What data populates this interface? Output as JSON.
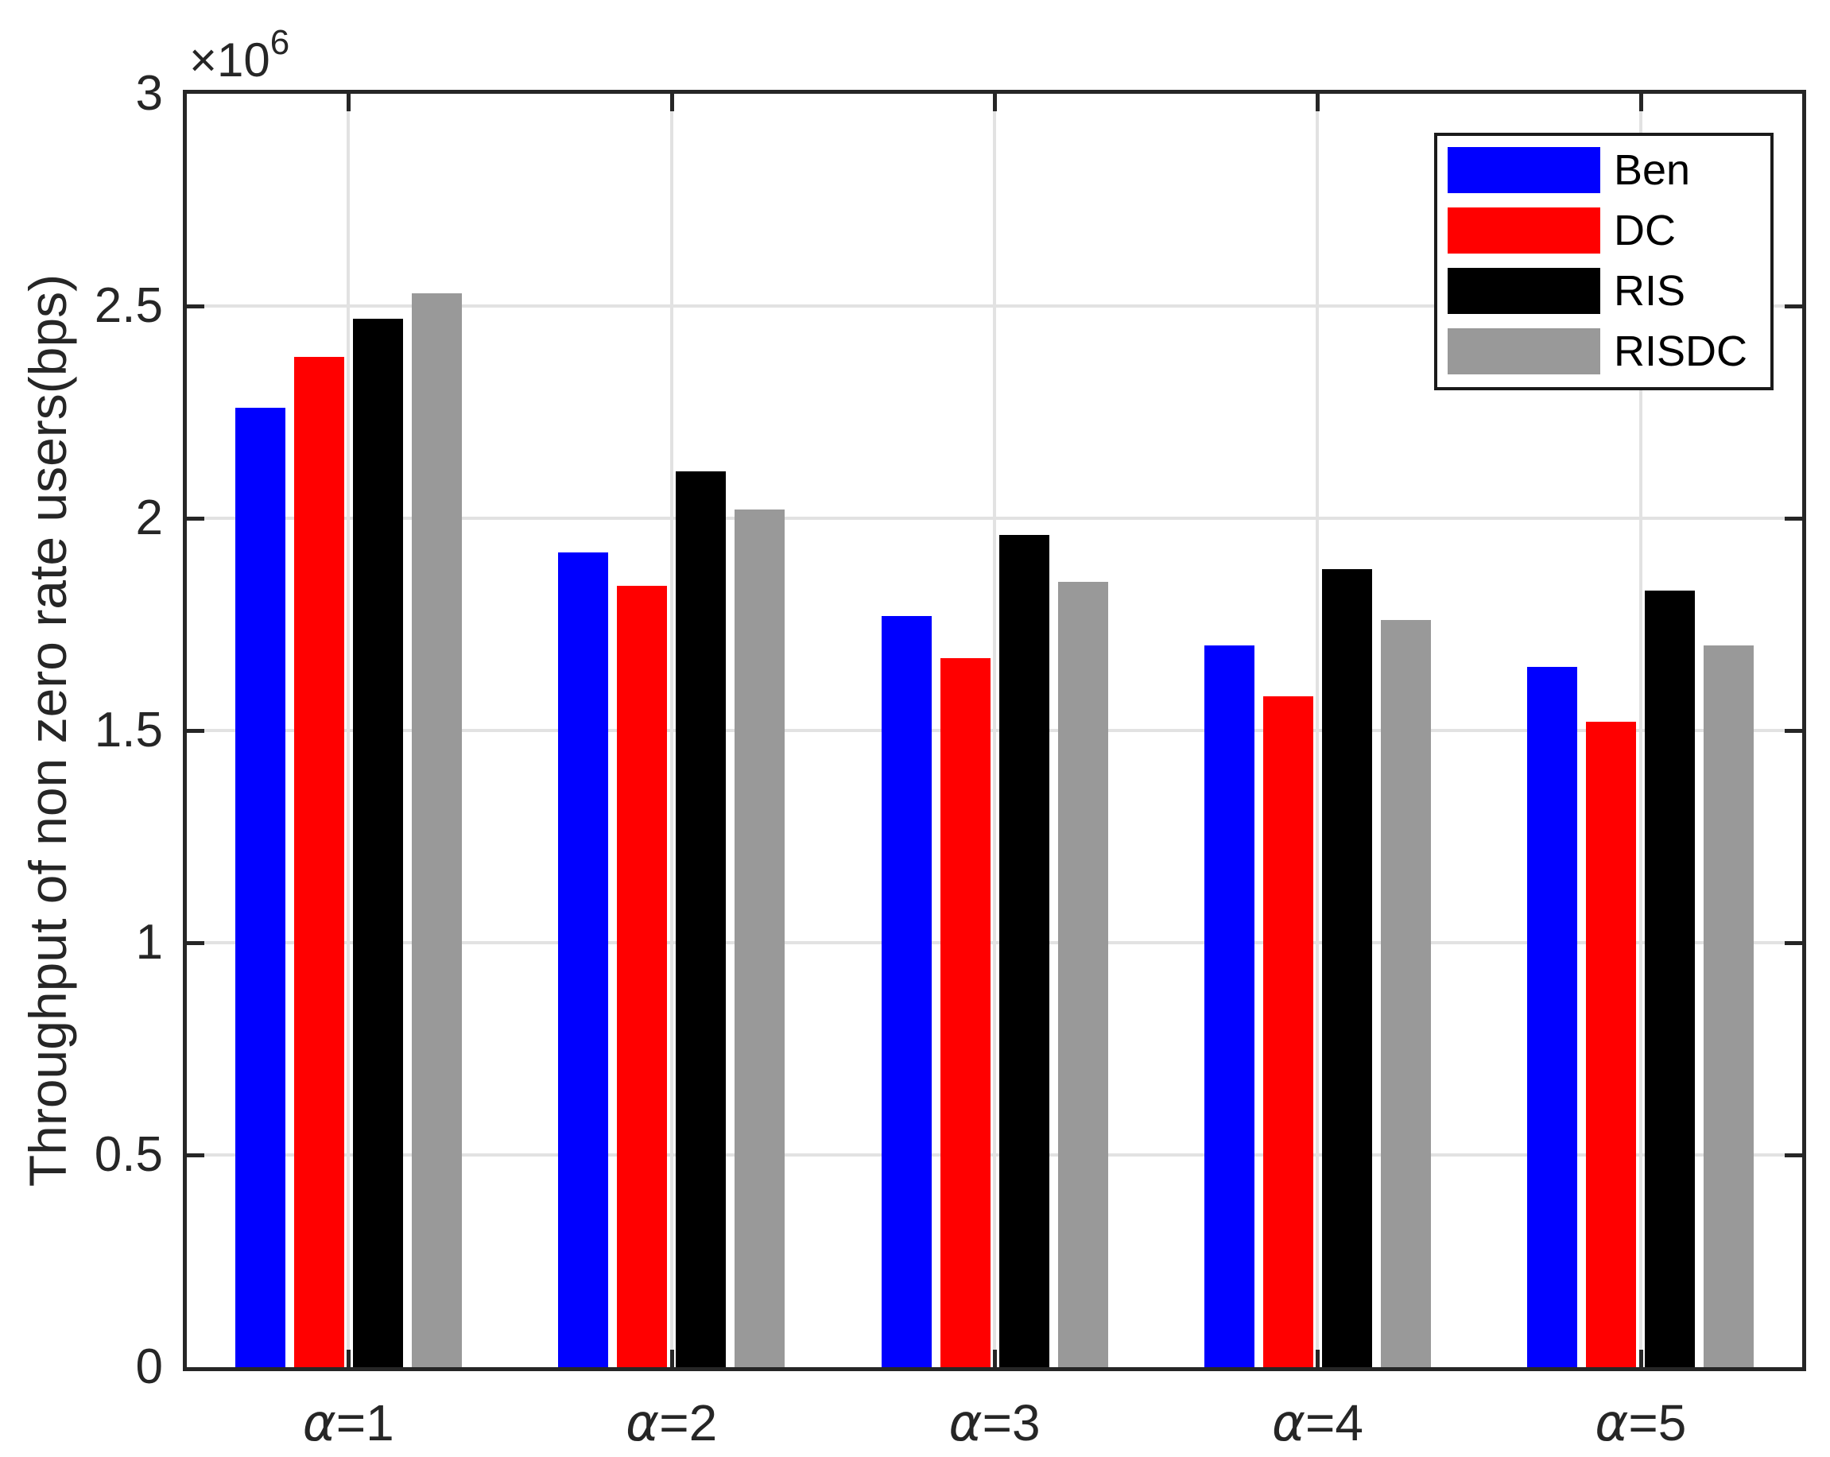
{
  "figure": {
    "y_axis_label": "Throughput of non zero rate users(bps)",
    "axis_scale_label": "×10^6",
    "axis_color": "#262626",
    "grid_color": "#e2e2e2",
    "background": "#ffffff",
    "legend_border_color": "#1a1a1a"
  },
  "chart_data": {
    "type": "bar",
    "title": "",
    "xlabel": "",
    "ylabel": "Throughput of non zero rate users(bps)",
    "value_scale_factor": 1000000,
    "value_scale_text": "×10^6",
    "categories": [
      "α=1",
      "α=2",
      "α=3",
      "α=4",
      "α=5"
    ],
    "series": [
      {
        "name": "Ben",
        "color": "#0000ff",
        "values": [
          2.26,
          1.92,
          1.77,
          1.7,
          1.65
        ]
      },
      {
        "name": "DC",
        "color": "#ff0000",
        "values": [
          2.38,
          1.84,
          1.67,
          1.58,
          1.52
        ]
      },
      {
        "name": "RIS",
        "color": "#000000",
        "values": [
          2.47,
          2.11,
          1.96,
          1.88,
          1.83
        ]
      },
      {
        "name": "RISDC",
        "color": "#999999",
        "values": [
          2.53,
          2.02,
          1.85,
          1.76,
          1.7
        ]
      }
    ],
    "ylim": [
      0,
      3
    ],
    "yticks": [
      0,
      0.5,
      1,
      1.5,
      2,
      2.5,
      3
    ],
    "ytick_labels": [
      "0",
      "0.5",
      "1",
      "1.5",
      "2",
      "2.5",
      "3"
    ],
    "grid": true,
    "box": true,
    "legend_position": "top-right",
    "legend_entries": [
      "Ben",
      "DC",
      "RIS",
      "RISDC"
    ]
  }
}
